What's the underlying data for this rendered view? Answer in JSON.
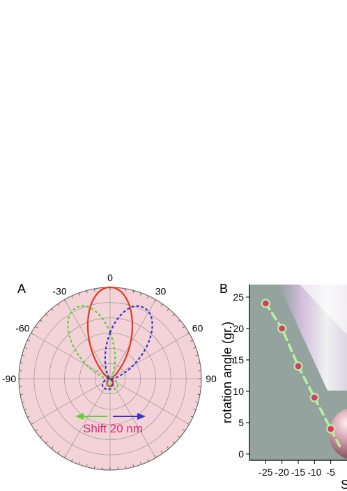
{
  "panel_a": {
    "label": "A",
    "annotation": "Shift 20 nm",
    "colors": {
      "background": "#f3d3d8",
      "grid": "#8a8a8a",
      "center": "#e8361f",
      "left": "#5fcf3a",
      "right": "#3a33c8",
      "annotation": "#e6246a"
    }
  },
  "panel_b": {
    "label": "B",
    "xlabel_partial": "S",
    "colors": {
      "background": "#95a39f",
      "markers": "#d83a6a",
      "dash": "#b8f2a0"
    }
  },
  "chart_data": [
    {
      "type": "polar",
      "angle_ticks": [
        "0",
        "30",
        "60",
        "90",
        "-30",
        "-60",
        "-90"
      ],
      "series": [
        {
          "style": "solid",
          "main_lobe_direction_deg": 0,
          "main_lobe_relative": 1.0,
          "back_lobe_relative": 0.08
        },
        {
          "style": "dashed",
          "main_lobe_direction_deg": -25,
          "main_lobe_relative": 0.86,
          "side_lobe_relative": 0.12
        },
        {
          "style": "dashed",
          "main_lobe_direction_deg": 25,
          "main_lobe_relative": 0.86,
          "side_lobe_relative": 0.12
        }
      ]
    },
    {
      "type": "scatter",
      "ylabel": "rotation angle (gr.)",
      "xlabel": "S",
      "xlim": [
        -30,
        0
      ],
      "ylim": [
        -1,
        27
      ],
      "x_ticks": [
        "-25",
        "-20",
        "-15",
        "-10",
        "-5"
      ],
      "y_ticks": [
        "0",
        "5",
        "10",
        "15",
        "20",
        "25"
      ],
      "points": [
        {
          "x": -25,
          "y": 24
        },
        {
          "x": -20,
          "y": 20
        },
        {
          "x": -15,
          "y": 14
        },
        {
          "x": -10,
          "y": 9
        },
        {
          "x": -5,
          "y": 4
        }
      ]
    }
  ]
}
